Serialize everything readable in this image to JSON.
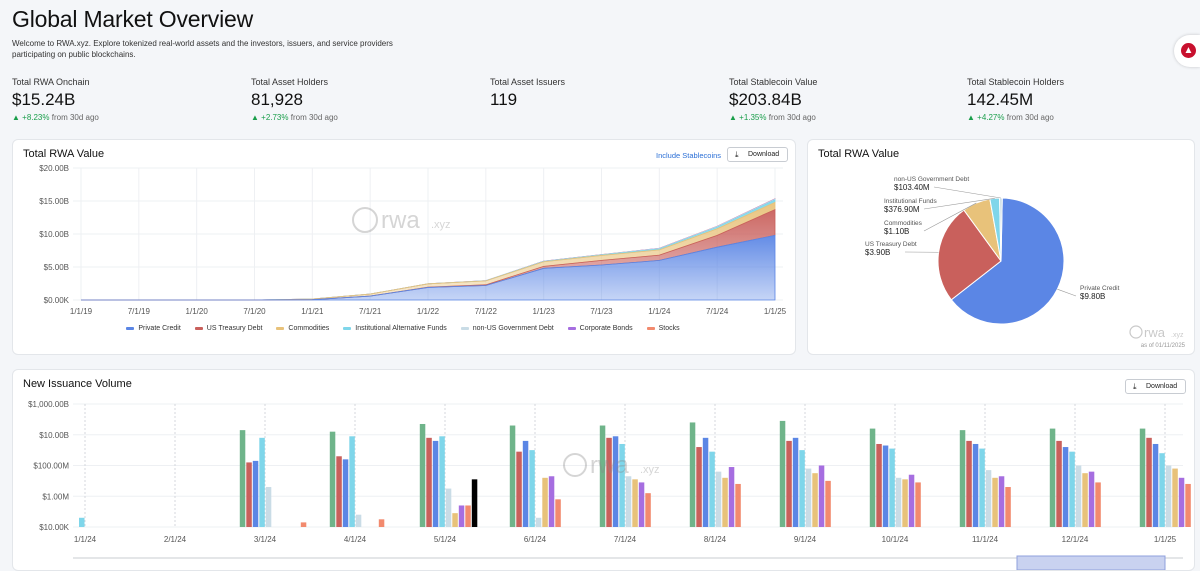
{
  "header": {
    "title": "Global Market Overview",
    "subtitle": "Welcome to RWA.xyz. Explore tokenized real-world assets and the investors, issuers, and service providers participating on public blockchains."
  },
  "stats": [
    {
      "label": "Total RWA Onchain",
      "value": "$15.24B",
      "change": "+8.23%",
      "suffix": "from 30d ago"
    },
    {
      "label": "Total Asset Holders",
      "value": "81,928",
      "change": "+2.73%",
      "suffix": "from 30d ago"
    },
    {
      "label": "Total Asset Issuers",
      "value": "119",
      "change": "",
      "suffix": ""
    },
    {
      "label": "Total Stablecoin Value",
      "value": "$203.84B",
      "change": "+1.35%",
      "suffix": "from 30d ago"
    },
    {
      "label": "Total Stablecoin Holders",
      "value": "142.45M",
      "change": "+4.27%",
      "suffix": "from 30d ago"
    }
  ],
  "area_card": {
    "title": "Total RWA Value",
    "include_label": "Include Stablecoins",
    "download_label": "Download",
    "watermark": "rwa",
    "watermark_sub": ".xyz"
  },
  "pie_card": {
    "title": "Total RWA Value",
    "watermark": "rwa",
    "watermark_sub": ".xyz",
    "asof": "as of 01/11/2025"
  },
  "bar_card": {
    "title": "New Issuance Volume",
    "download_label": "Download",
    "watermark": "rwa",
    "watermark_sub": ".xyz"
  },
  "colors": {
    "private_credit": "#5b86e5",
    "us_treasury": "#c9605c",
    "commodities": "#e8c27a",
    "inst_funds": "#7fd6ea",
    "non_us_gov": "#c9dce6",
    "corp_bonds": "#a66ee0",
    "stocks": "#f28a6e",
    "green": "#6fb48a"
  },
  "chart_data": [
    {
      "type": "area",
      "title": "Total RWA Value",
      "x": [
        "1/1/19",
        "7/1/19",
        "1/1/20",
        "7/1/20",
        "1/1/21",
        "7/1/21",
        "1/1/22",
        "7/1/22",
        "1/1/23",
        "7/1/23",
        "1/1/24",
        "7/1/24",
        "1/1/25"
      ],
      "yticks": [
        "$0.00K",
        "$5.00B",
        "$10.00B",
        "$15.00B",
        "$20.00B"
      ],
      "ylim": [
        0,
        20
      ],
      "series": [
        {
          "name": "Private Credit",
          "values": [
            0,
            0,
            0,
            0,
            0.05,
            0.6,
            1.9,
            2.2,
            4.8,
            5.3,
            6.0,
            8.0,
            9.8
          ]
        },
        {
          "name": "US Treasury Debt",
          "values": [
            0,
            0,
            0,
            0,
            0,
            0,
            0.05,
            0.1,
            0.3,
            0.7,
            0.8,
            1.8,
            3.9
          ]
        },
        {
          "name": "Commodities",
          "values": [
            0,
            0,
            0,
            0,
            0.1,
            0.3,
            0.5,
            0.6,
            0.7,
            0.75,
            0.8,
            1.0,
            1.1
          ]
        },
        {
          "name": "Institutional Alternative Funds",
          "values": [
            0,
            0,
            0,
            0,
            0,
            0,
            0,
            0.02,
            0.05,
            0.08,
            0.15,
            0.25,
            0.38
          ]
        },
        {
          "name": "non-US Government Debt",
          "values": [
            0,
            0,
            0,
            0,
            0,
            0,
            0,
            0.01,
            0.02,
            0.04,
            0.06,
            0.08,
            0.1
          ]
        },
        {
          "name": "Corporate Bonds",
          "values": [
            0,
            0,
            0,
            0,
            0,
            0,
            0,
            0,
            0.01,
            0.01,
            0.02,
            0.03,
            0.04
          ]
        },
        {
          "name": "Stocks",
          "values": [
            0,
            0,
            0,
            0,
            0,
            0,
            0,
            0,
            0,
            0.01,
            0.01,
            0.02,
            0.02
          ]
        }
      ],
      "legend": [
        "Private Credit",
        "US Treasury Debt",
        "Commodities",
        "Institutional Alternative Funds",
        "non-US Government Debt",
        "Corporate Bonds",
        "Stocks"
      ]
    },
    {
      "type": "pie",
      "title": "Total RWA Value",
      "slices": [
        {
          "name": "Private Credit",
          "value": 9.8,
          "label": "$9.80B"
        },
        {
          "name": "US Treasury Debt",
          "value": 3.9,
          "label": "$3.90B"
        },
        {
          "name": "Commodities",
          "value": 1.1,
          "label": "$1.10B"
        },
        {
          "name": "Institutional Funds",
          "value": 0.3769,
          "label": "$376.90M"
        },
        {
          "name": "non-US Government Debt",
          "value": 0.1034,
          "label": "$103.40M"
        }
      ]
    },
    {
      "type": "bar",
      "title": "New Issuance Volume",
      "categories": [
        "1/1/24",
        "2/1/24",
        "3/1/24",
        "4/1/24",
        "5/1/24",
        "6/1/24",
        "7/1/24",
        "8/1/24",
        "9/1/24",
        "10/1/24",
        "11/1/24",
        "12/1/24",
        "1/1/25"
      ],
      "yticks": [
        "$10.00K",
        "$1.00M",
        "$100.00M",
        "$10.00B",
        "$1,000.00B"
      ],
      "ylim_log10": [
        4,
        12
      ],
      "series_log10": [
        [
          4.6,
          null,
          null,
          null,
          null,
          0
        ],
        [
          10.3,
          8.2,
          8.3,
          9.8,
          6.6,
          null,
          null,
          null,
          4.3
        ],
        [
          10.2,
          8.6,
          8.4,
          9.9,
          4.8,
          null,
          null,
          4.5
        ],
        [
          10.7,
          9.8,
          9.6,
          9.9,
          6.5,
          4.9,
          5.4,
          5.4,
          7.1
        ],
        [
          10.6,
          8.9,
          9.6,
          9.0,
          4.6,
          7.2,
          7.3,
          5.8
        ],
        [
          10.6,
          9.8,
          9.9,
          9.4,
          7.3,
          7.1,
          6.9,
          6.2
        ],
        [
          10.8,
          9.2,
          9.8,
          8.9,
          7.6,
          7.2,
          7.9,
          6.8
        ],
        [
          10.9,
          9.6,
          9.8,
          9.0,
          7.8,
          7.5,
          8.0,
          7.0
        ],
        [
          10.4,
          9.4,
          9.3,
          9.1,
          7.2,
          7.1,
          7.4,
          6.9
        ],
        [
          10.3,
          9.6,
          9.4,
          9.1,
          7.7,
          7.2,
          7.3,
          6.6
        ],
        [
          10.4,
          9.6,
          9.2,
          8.9,
          8.0,
          7.5,
          7.6,
          6.9
        ],
        [
          10.4,
          9.8,
          9.4,
          8.8,
          8.0,
          7.8,
          7.2,
          6.8
        ],
        [
          10.0,
          9.3,
          9.1,
          8.1,
          7.8,
          7.3,
          7.0,
          6.1
        ]
      ]
    }
  ]
}
